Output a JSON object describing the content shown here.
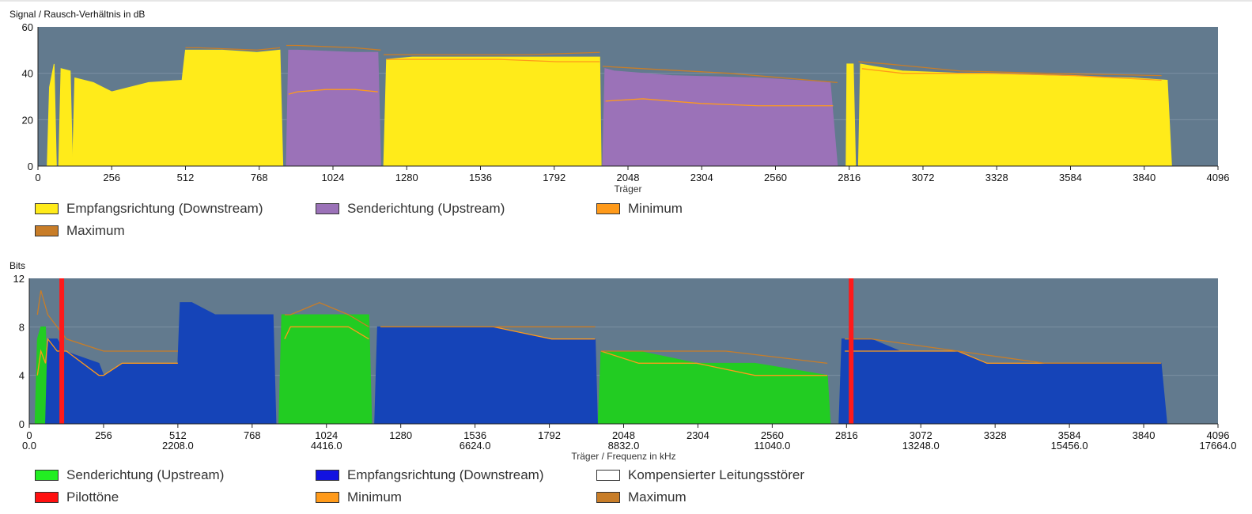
{
  "chart_data": [
    {
      "type": "area",
      "ylabel": "Signal / Rausch-Verhältnis in dB",
      "xlabel": "Träger",
      "xlim": [
        0,
        4096
      ],
      "ylim": [
        0,
        60
      ],
      "xticks": [
        "0",
        "256",
        "512",
        "768",
        "1024",
        "1280",
        "1536",
        "1792",
        "2048",
        "2304",
        "2560",
        "2816",
        "3072",
        "3328",
        "3584",
        "3840",
        "4096"
      ],
      "yticks": [
        "0",
        "20",
        "40",
        "60"
      ],
      "grid": true,
      "legend": "bottom",
      "series": [
        {
          "name": "Empfangsrichtung (Downstream)",
          "color": "#ffeb1a",
          "segments": [
            {
              "x": [
                32,
                40,
                56,
                64
              ],
              "y": [
                0,
                34,
                44,
                0
              ]
            },
            {
              "x": [
                72,
                80,
                112,
                120
              ],
              "y": [
                0,
                42,
                41,
                0
              ]
            },
            {
              "x": [
                120,
                128,
                192,
                256,
                320,
                384,
                500,
                512,
                520,
                640,
                760,
                840,
                850
              ],
              "y": [
                0,
                38,
                36,
                32,
                34,
                36,
                37,
                50,
                50,
                50,
                49,
                50,
                0
              ]
            },
            {
              "x": [
                1200,
                1210,
                1300,
                1500,
                1700,
                1950,
                1955
              ],
              "y": [
                0,
                46,
                47,
                47,
                47,
                47,
                0
              ]
            },
            {
              "x": [
                2805,
                2808,
                2830,
                2838
              ],
              "y": [
                0,
                44,
                44,
                0
              ]
            },
            {
              "x": [
                2848,
                2855,
                2900,
                3000,
                3200,
                3500,
                3800,
                3920,
                3935
              ],
              "y": [
                0,
                44,
                43,
                41,
                40,
                39,
                38,
                37,
                0
              ]
            }
          ]
        },
        {
          "name": "Senderichtung (Upstream)",
          "color": "#9b72b8",
          "segments": [
            {
              "x": [
                862,
                870,
                900,
                1100,
                1180,
                1190
              ],
              "y": [
                0,
                50,
                50,
                49,
                49,
                0
              ]
            },
            {
              "x": [
                1960,
                1968,
                2000,
                2200,
                2500,
                2750,
                2775
              ],
              "y": [
                0,
                42,
                41,
                39,
                38,
                36,
                0
              ]
            }
          ]
        },
        {
          "name": "Minimum",
          "color": "#ff9a1a",
          "segments": [
            {
              "x": [
                870,
                900,
                1000,
                1100,
                1180
              ],
              "y": [
                31,
                32,
                33,
                33,
                32
              ]
            },
            {
              "x": [
                1210,
                1400,
                1600,
                1800,
                1950
              ],
              "y": [
                46,
                46,
                46,
                45,
                45
              ]
            },
            {
              "x": [
                1970,
                2100,
                2300,
                2500,
                2700,
                2760
              ],
              "y": [
                28,
                29,
                27,
                26,
                26,
                26
              ]
            },
            {
              "x": [
                2860,
                3000,
                3300,
                3600,
                3900
              ],
              "y": [
                42,
                40,
                40,
                39,
                37
              ]
            }
          ]
        },
        {
          "name": "Maximum",
          "color": "#c87d28",
          "segments": [
            {
              "x": [
                512,
                560,
                760,
                840
              ],
              "y": [
                51,
                51,
                50,
                51
              ]
            },
            {
              "x": [
                862,
                900,
                1100,
                1190
              ],
              "y": [
                52,
                52,
                51,
                50
              ]
            },
            {
              "x": [
                1200,
                1400,
                1700,
                1950
              ],
              "y": [
                48,
                48,
                48,
                49
              ]
            },
            {
              "x": [
                1960,
                2100,
                2400,
                2775
              ],
              "y": [
                43,
                42,
                40,
                36
              ]
            },
            {
              "x": [
                2848,
                2950,
                3200,
                3500,
                3900
              ],
              "y": [
                45,
                44,
                41,
                40,
                39
              ]
            }
          ]
        }
      ]
    },
    {
      "type": "area",
      "ylabel": "Bits",
      "xlabel": "Träger / Frequenz in kHz",
      "xlim": [
        0,
        4096
      ],
      "ylim": [
        0,
        12
      ],
      "xticks": [
        "0",
        "256",
        "512",
        "768",
        "1024",
        "1280",
        "1536",
        "1792",
        "2048",
        "2304",
        "2560",
        "2816",
        "3072",
        "3328",
        "3584",
        "3840",
        "4096"
      ],
      "xticks2": [
        "0.0",
        "2208.0",
        "4416.0",
        "6624.0",
        "8832.0",
        "11040.0",
        "13248.0",
        "15456.0",
        "17664.0"
      ],
      "yticks": [
        "0",
        "4",
        "8",
        "12"
      ],
      "grid": true,
      "legend": "bottom",
      "series": [
        {
          "name": "Senderichtung (Upstream)",
          "color": "#22cc22",
          "segments": [
            {
              "x": [
                20,
                28,
                40,
                56,
                64
              ],
              "y": [
                0,
                7,
                8,
                8,
                0
              ]
            },
            {
              "x": [
                860,
                870,
                900,
                1100,
                1170,
                1180
              ],
              "y": [
                0,
                9,
                9,
                9,
                9,
                0
              ]
            },
            {
              "x": [
                1960,
                1970,
                2100,
                2300,
                2500,
                2750,
                2760
              ],
              "y": [
                0,
                6,
                6,
                5,
                5,
                4,
                0
              ]
            }
          ]
        },
        {
          "name": "Empfangsrichtung (Downstream)",
          "color": "#1544b8",
          "segments": [
            {
              "x": [
                56,
                64,
                96,
                120,
                240,
                256,
                320,
                512,
                520,
                560,
                640,
                840,
                850
              ],
              "y": [
                0,
                7,
                7,
                6,
                5,
                4,
                5,
                5,
                10,
                10,
                9,
                9,
                0
              ]
            },
            {
              "x": [
                1190,
                1200,
                1400,
                1600,
                1800,
                1950,
                1958
              ],
              "y": [
                0,
                8,
                8,
                8,
                7,
                7,
                0
              ]
            },
            {
              "x": [
                2790,
                2800,
                2830,
                2900,
                3000,
                3200,
                3300,
                3600,
                3900,
                3920
              ],
              "y": [
                0,
                7,
                7,
                7,
                6,
                6,
                5,
                5,
                5,
                0
              ]
            }
          ]
        },
        {
          "name": "Kompensierter Leitungsstörer",
          "color": "#ffffff",
          "segments": []
        },
        {
          "name": "Pilottöne",
          "color": "#ff1a1a",
          "x": [
            112,
            2832
          ]
        },
        {
          "name": "Minimum",
          "color": "#ff9a1a",
          "segments": [
            {
              "x": [
                28,
                40,
                56,
                64,
                96,
                128,
                240,
                256,
                320,
                512
              ],
              "y": [
                4,
                6,
                5,
                7,
                6,
                6,
                4,
                4,
                5,
                5
              ]
            },
            {
              "x": [
                880,
                900,
                1100,
                1170
              ],
              "y": [
                7,
                8,
                8,
                7
              ]
            },
            {
              "x": [
                1210,
                1400,
                1600,
                1800,
                1950
              ],
              "y": [
                8,
                8,
                8,
                7,
                7
              ]
            },
            {
              "x": [
                1970,
                2100,
                2300,
                2500,
                2750
              ],
              "y": [
                6,
                5,
                5,
                4,
                4
              ]
            },
            {
              "x": [
                2810,
                2900,
                3200,
                3300,
                3900
              ],
              "y": [
                6,
                6,
                6,
                5,
                5
              ]
            }
          ]
        },
        {
          "name": "Maximum",
          "color": "#c87d28",
          "segments": [
            {
              "x": [
                28,
                40,
                64,
                96,
                128,
                256,
                320,
                512
              ],
              "y": [
                9,
                11,
                9,
                8,
                7,
                6,
                6,
                6
              ]
            },
            {
              "x": [
                880,
                900,
                1000,
                1100,
                1170
              ],
              "y": [
                9,
                9,
                10,
                9,
                8
              ]
            },
            {
              "x": [
                1210,
                1500,
                1800,
                1950
              ],
              "y": [
                8,
                8,
                8,
                8
              ]
            },
            {
              "x": [
                1970,
                2100,
                2400,
                2750
              ],
              "y": [
                6,
                6,
                6,
                5
              ]
            },
            {
              "x": [
                2810,
                2900,
                3200,
                3500,
                3900
              ],
              "y": [
                7,
                7,
                6,
                5,
                5
              ]
            }
          ]
        }
      ]
    }
  ],
  "legend1": [
    {
      "label": "Empfangsrichtung (Downstream)",
      "color": "#ffeb1a"
    },
    {
      "label": "Senderichtung (Upstream)",
      "color": "#9b72b8"
    },
    {
      "label": "Minimum",
      "color": "#ff9a1a"
    },
    {
      "label": "Maximum",
      "color": "#c87d28"
    }
  ],
  "legend2": [
    {
      "label": "Senderichtung (Upstream)",
      "color": "#22ee22"
    },
    {
      "label": "Empfangsrichtung (Downstream)",
      "color": "#1212e0"
    },
    {
      "label": "Kompensierter Leitungsstörer",
      "color": "#ffffff"
    },
    {
      "label": "Pilottöne",
      "color": "#ff1010"
    },
    {
      "label": "Minimum",
      "color": "#ff9a1a"
    },
    {
      "label": "Maximum",
      "color": "#c87d28"
    }
  ]
}
